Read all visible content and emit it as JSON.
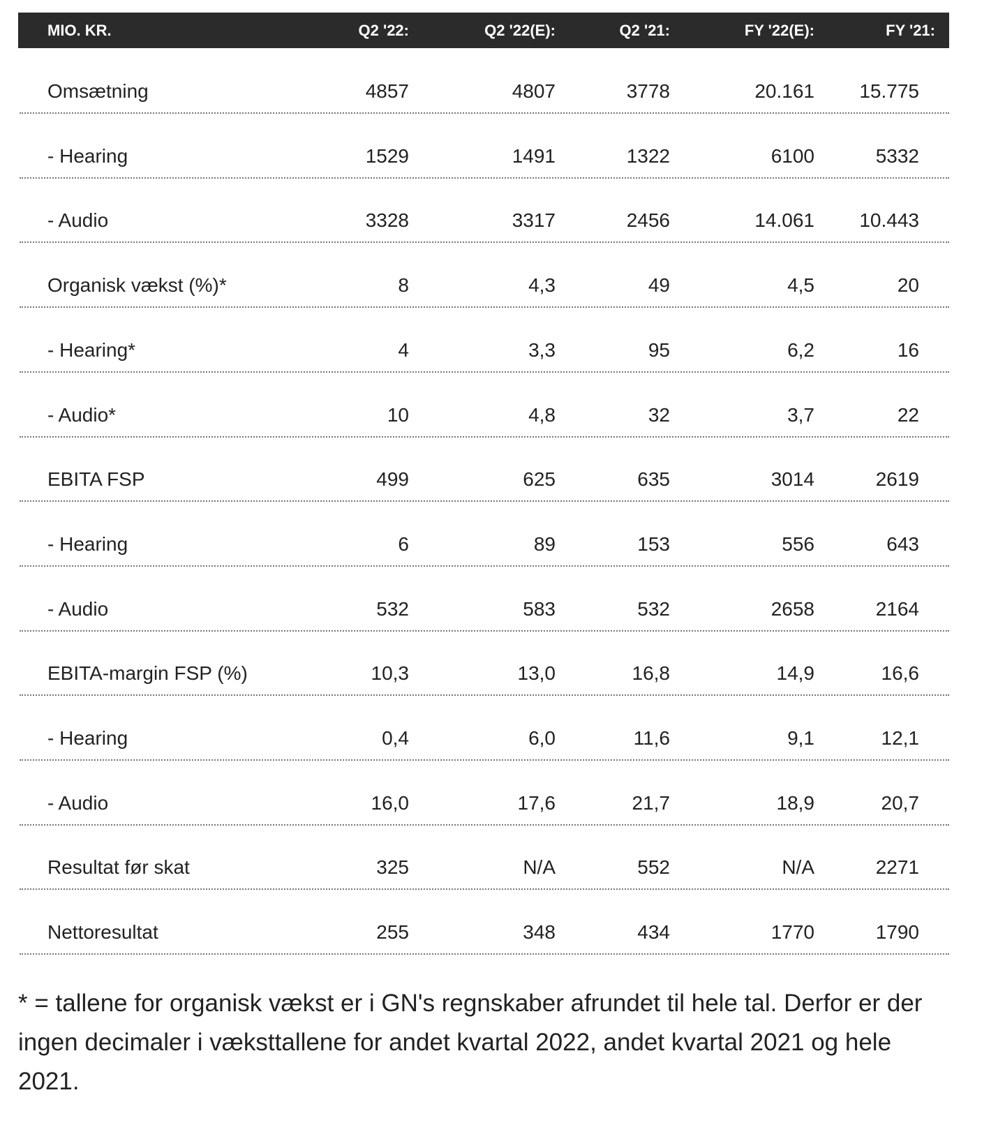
{
  "table": {
    "header": [
      "MIO. KR.",
      "Q2 '22:",
      "Q2 '22(E):",
      "Q2 '21:",
      "FY '22(E):",
      "FY '21:"
    ],
    "rows": [
      [
        "Omsætning",
        "4857",
        "4807",
        "3778",
        "20.161",
        "15.775"
      ],
      [
        "- Hearing",
        "1529",
        "1491",
        "1322",
        "6100",
        "5332"
      ],
      [
        "- Audio",
        "3328",
        "3317",
        "2456",
        "14.061",
        "10.443"
      ],
      [
        "Organisk vækst (%)*",
        "8",
        "4,3",
        "49",
        "4,5",
        "20"
      ],
      [
        "- Hearing*",
        "4",
        "3,3",
        "95",
        "6,2",
        "16"
      ],
      [
        "- Audio*",
        "10",
        "4,8",
        "32",
        "3,7",
        "22"
      ],
      [
        "EBITA FSP",
        "499",
        "625",
        "635",
        "3014",
        "2619"
      ],
      [
        "- Hearing",
        "6",
        "89",
        "153",
        "556",
        "643"
      ],
      [
        "- Audio",
        "532",
        "583",
        "532",
        "2658",
        "2164"
      ],
      [
        "EBITA-margin FSP (%)",
        "10,3",
        "13,0",
        "16,8",
        "14,9",
        "16,6"
      ],
      [
        "- Hearing",
        "0,4",
        "6,0",
        "11,6",
        "9,1",
        "12,1"
      ],
      [
        "- Audio",
        "16,0",
        "17,6",
        "21,7",
        "18,9",
        "20,7"
      ],
      [
        "Resultat før skat",
        "325",
        "N/A",
        "552",
        "N/A",
        "2271"
      ],
      [
        "Nettoresultat",
        "255",
        "348",
        "434",
        "1770",
        "1790"
      ]
    ]
  },
  "footnote": "* = tallene for organisk vækst er i GN's regnskaber afrundet til hele tal. Derfor er der ingen decimaler i væksttallene for andet kvartal 2022, andet kvartal 2021 og hele 2021."
}
